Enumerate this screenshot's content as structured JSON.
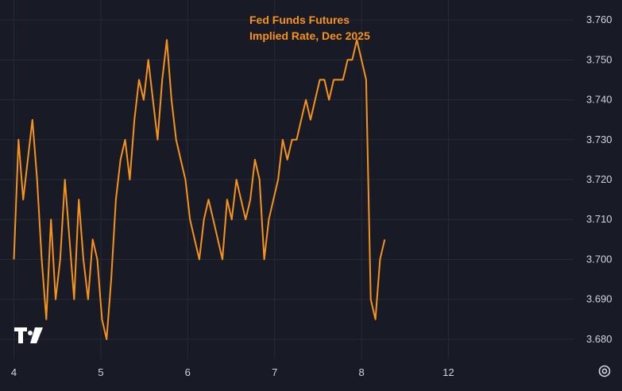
{
  "chart_data": {
    "type": "line",
    "title_lines": [
      "Fed Funds Futures",
      "Implied Rate, Dec 2025"
    ],
    "xlabel": "",
    "ylabel": "",
    "x_ticks": [
      {
        "label": "4",
        "x": 0
      },
      {
        "label": "5",
        "x": 75
      },
      {
        "label": "6",
        "x": 150
      },
      {
        "label": "7",
        "x": 225
      },
      {
        "label": "8",
        "x": 300
      },
      {
        "label": "12",
        "x": 375
      }
    ],
    "y_ticks": [
      "3.760",
      "3.750",
      "3.740",
      "3.730",
      "3.720",
      "3.710",
      "3.700",
      "3.690",
      "3.680"
    ],
    "ylim": [
      3.675,
      3.765
    ],
    "xlim": [
      -12,
      483
    ],
    "grid": true,
    "colors": {
      "line": "#f7931a",
      "title": "#f7931a",
      "grid": "#262a36",
      "background": "#181b26",
      "text": "#d1d4dc"
    },
    "series": [
      {
        "x": [
          0,
          4,
          8,
          12,
          16,
          20,
          24,
          28,
          32,
          36,
          40,
          44,
          48,
          52,
          56,
          60,
          64,
          68,
          72,
          76,
          80,
          84,
          88,
          92,
          96,
          100,
          104,
          108,
          112,
          116,
          120,
          124,
          128,
          132,
          136,
          140,
          144,
          148,
          152,
          156,
          160,
          164,
          168,
          172,
          176,
          180,
          184,
          188,
          192,
          196,
          200,
          204,
          208,
          212,
          216,
          220,
          224,
          228,
          232,
          236,
          240,
          244,
          248,
          252,
          256,
          260,
          264,
          268,
          272,
          276,
          280,
          284,
          288,
          292,
          296,
          300,
          304,
          308,
          312,
          316,
          320,
          324,
          328,
          332,
          336,
          340,
          344,
          348,
          352,
          356,
          360,
          364,
          368,
          372,
          376,
          380,
          384,
          388,
          392,
          396,
          400,
          404,
          408,
          412,
          416,
          420,
          424,
          428,
          432,
          436
        ],
        "y": [
          3.7,
          3.73,
          3.715,
          3.725,
          3.735,
          3.72,
          3.7,
          3.685,
          3.71,
          3.69,
          3.7,
          3.72,
          3.705,
          3.69,
          3.715,
          3.7,
          3.69,
          3.705,
          3.7,
          3.685,
          3.68,
          3.695,
          3.715,
          3.725,
          3.73,
          3.72,
          3.735,
          3.745,
          3.74,
          3.75,
          3.74,
          3.73,
          3.745,
          3.755,
          3.74,
          3.73,
          3.725,
          3.72,
          3.71,
          3.705,
          3.7,
          3.71,
          3.715,
          3.71,
          3.705,
          3.7,
          3.715,
          3.71,
          3.72,
          3.715,
          3.71,
          3.715,
          3.725,
          3.72,
          3.7,
          3.71,
          3.715,
          3.72,
          3.73,
          3.725,
          3.73,
          3.73,
          3.735,
          3.74,
          3.735,
          3.74,
          3.745,
          3.745,
          3.74,
          3.745,
          3.745,
          3.745,
          3.75,
          3.75,
          3.755,
          3.75,
          3.745,
          3.69,
          3.685,
          3.7,
          3.705,
          null,
          null,
          null,
          null,
          null,
          null,
          null,
          null,
          null,
          null,
          null,
          null,
          null,
          null,
          null,
          null,
          null,
          null,
          null,
          null,
          null,
          null,
          null,
          null,
          null,
          null,
          null,
          null,
          null
        ]
      }
    ]
  },
  "settings_icon": "gear-icon",
  "logo_text": "TV"
}
